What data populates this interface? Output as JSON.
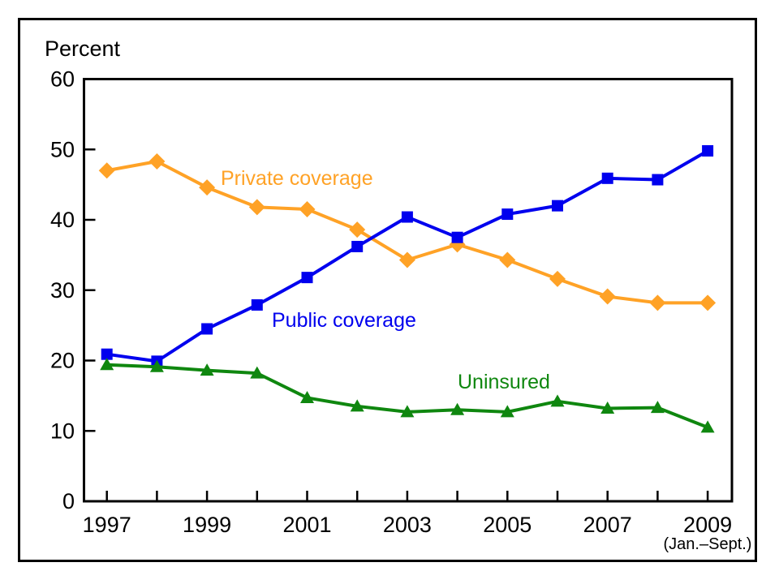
{
  "chart_data": {
    "type": "line",
    "title": "",
    "ylabel": "Percent",
    "xlabel": "",
    "x_axis_note": "(Jan.–Sept.)",
    "grid": false,
    "legend_position": "inline-labels-on-chart",
    "ylim": [
      0,
      60
    ],
    "y_ticks": [
      0,
      10,
      20,
      30,
      40,
      50,
      60
    ],
    "x": [
      1997,
      1998,
      1999,
      2000,
      2001,
      2002,
      2003,
      2004,
      2005,
      2006,
      2007,
      2008,
      2009
    ],
    "x_tick_label_years": [
      1997,
      1999,
      2001,
      2003,
      2005,
      2007,
      2009
    ],
    "series": [
      {
        "name": "Private coverage",
        "marker": "diamond",
        "color": "#FFA226",
        "values": [
          47.0,
          48.3,
          44.6,
          41.8,
          41.5,
          38.6,
          34.3,
          36.5,
          34.3,
          31.6,
          29.1,
          28.2,
          28.2
        ]
      },
      {
        "name": "Public coverage",
        "marker": "square",
        "color": "#0000EE",
        "values": [
          20.9,
          19.9,
          24.5,
          27.9,
          31.8,
          36.2,
          40.4,
          37.5,
          40.8,
          42.0,
          45.9,
          45.7,
          49.8
        ]
      },
      {
        "name": "Uninsured",
        "marker": "triangle",
        "color": "#0F870F",
        "values": [
          19.4,
          19.1,
          18.6,
          18.2,
          14.7,
          13.5,
          12.7,
          13.0,
          12.7,
          14.2,
          13.2,
          13.3,
          10.5
        ]
      }
    ]
  }
}
